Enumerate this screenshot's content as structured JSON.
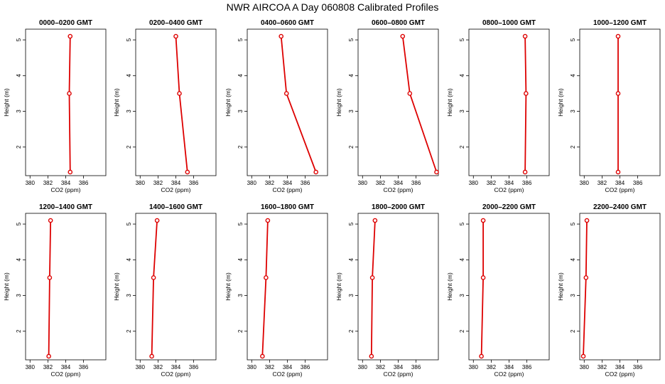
{
  "chart_data": {
    "type": "line",
    "title": "NWR AIRCOA A  Day 060808  Calibrated Profiles",
    "xlabel": "CO2 (ppm)",
    "ylabel": "Height (m)",
    "xlim": [
      379.5,
      388.5
    ],
    "ylim": [
      1.2,
      5.3
    ],
    "xticks": [
      380,
      382,
      384,
      386
    ],
    "yticks": [
      2,
      3,
      4,
      5
    ],
    "heights": [
      1.3,
      3.5,
      5.1
    ],
    "panels": [
      {
        "title": "0000–0200 GMT",
        "x": [
          384.5,
          384.4,
          384.5
        ]
      },
      {
        "title": "0200–0400 GMT",
        "x": [
          385.3,
          384.4,
          384.0
        ]
      },
      {
        "title": "0400–0600 GMT",
        "x": [
          387.2,
          383.9,
          383.3
        ]
      },
      {
        "title": "0600–0800 GMT",
        "x": [
          388.3,
          385.3,
          384.5
        ]
      },
      {
        "title": "0800–1000 GMT",
        "x": [
          385.8,
          385.9,
          385.8
        ]
      },
      {
        "title": "1000–1200 GMT",
        "x": [
          383.8,
          383.8,
          383.8
        ]
      },
      {
        "title": "1200–1400 GMT",
        "x": [
          382.1,
          382.2,
          382.3
        ]
      },
      {
        "title": "1400–1600 GMT",
        "x": [
          381.3,
          381.5,
          381.9
        ]
      },
      {
        "title": "1600–1800 GMT",
        "x": [
          381.2,
          381.6,
          381.8
        ]
      },
      {
        "title": "1800–2000 GMT",
        "x": [
          381.0,
          381.1,
          381.4
        ]
      },
      {
        "title": "2000–2200 GMT",
        "x": [
          380.9,
          381.1,
          381.1
        ]
      },
      {
        "title": "2200–2400 GMT",
        "x": [
          379.9,
          380.2,
          380.3
        ]
      }
    ]
  }
}
